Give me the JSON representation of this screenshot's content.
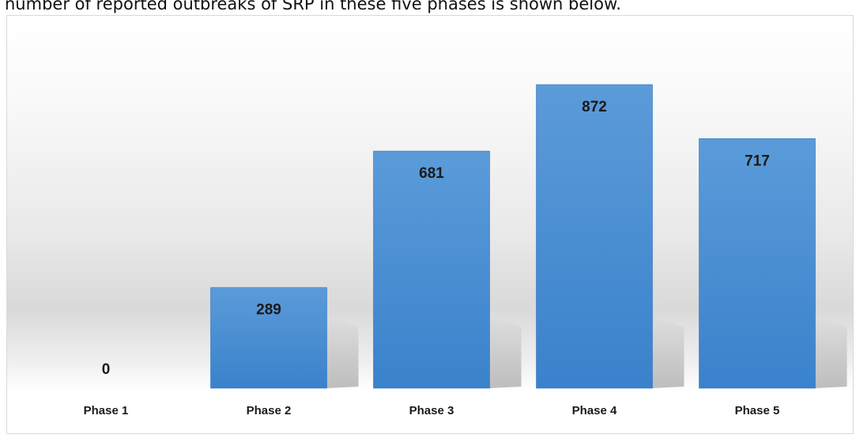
{
  "intro_text": "number of reported outbreaks of SRP in these five phases is shown below.",
  "colors": {
    "bar_top": "#5b9bd9",
    "bar_bottom": "#3a82cc",
    "bar_edge": "#3174bd",
    "text": "#1a1a1a"
  },
  "chart_data": {
    "type": "bar",
    "categories": [
      "Phase 1",
      "Phase 2",
      "Phase 3",
      "Phase 4",
      "Phase 5"
    ],
    "values": [
      0,
      289,
      681,
      872,
      717
    ],
    "data_labels": [
      "0",
      "289",
      "681",
      "872",
      "717"
    ],
    "title": "",
    "xlabel": "",
    "ylabel": "",
    "ylim": [
      0,
      900
    ],
    "grid": false,
    "legend": "none"
  }
}
